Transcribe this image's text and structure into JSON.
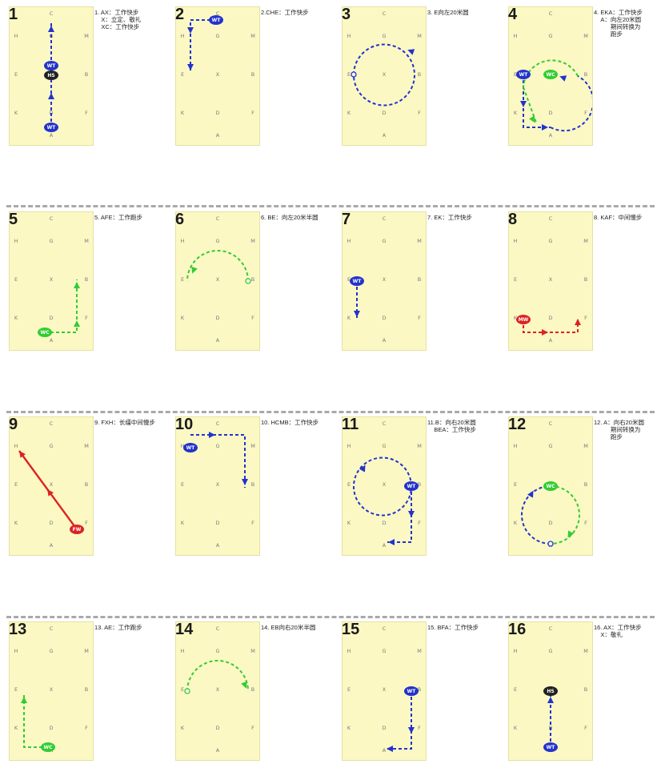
{
  "arena_letters": {
    "c": "C",
    "h": "H",
    "g": "G",
    "m": "M",
    "e": "E",
    "x": "X",
    "b": "B",
    "k": "K",
    "d": "D",
    "f": "F",
    "a": "A"
  },
  "colors": {
    "walk": "#2233cc",
    "trot": "#33cc33",
    "medium": "#dd2222",
    "halt": "#222222",
    "arena": "#fbf8c4",
    "separator": "#a9a9a9"
  },
  "figures": [
    {
      "number": "1",
      "caption": "1. AX：工作快步\n    X：立定、敬礼\n    XC：工作快步",
      "badges": [
        "WT",
        "HS",
        "WT"
      ]
    },
    {
      "number": "2",
      "caption": "2.CHE：工作快步",
      "badges": [
        "WT"
      ]
    },
    {
      "number": "3",
      "caption": "3. E向左20米圆",
      "badges": []
    },
    {
      "number": "4",
      "caption": "4. EKA：工作快步\n    A：向左20米圆\n          期间转换为\n          跑步",
      "badges": [
        "WT",
        "WC"
      ]
    },
    {
      "number": "5",
      "caption": "5. AFE：工作跑步",
      "badges": [
        "WC"
      ]
    },
    {
      "number": "6",
      "caption": "6. BE：向左20米半圆",
      "badges": []
    },
    {
      "number": "7",
      "caption": "7. EK：工作快步",
      "badges": [
        "WT"
      ]
    },
    {
      "number": "8",
      "caption": "8. KAF：中间慢步",
      "badges": [
        "MW"
      ]
    },
    {
      "number": "9",
      "caption": "9. FXH：长缰中间慢步",
      "badges": [
        "FW"
      ]
    },
    {
      "number": "10",
      "caption": "10. HCMB：工作快步",
      "badges": [
        "WT"
      ]
    },
    {
      "number": "11",
      "caption": "11.B：向右20米圆\n    BEA：工作快步",
      "badges": [
        "WT"
      ]
    },
    {
      "number": "12",
      "caption": "12. A：向右20米圆\n          期间转换为\n          跑步",
      "badges": [
        "WC"
      ]
    },
    {
      "number": "13",
      "caption": "13. AE：工作跑步",
      "badges": [
        "WC"
      ]
    },
    {
      "number": "14",
      "caption": "14. EB向右20米半圆",
      "badges": []
    },
    {
      "number": "15",
      "caption": "15. BFA：工作快步",
      "badges": [
        "WT"
      ]
    },
    {
      "number": "16",
      "caption": "16. AX：工作快步\n    X：敬礼",
      "badges": [
        "HS",
        "WT"
      ]
    }
  ]
}
